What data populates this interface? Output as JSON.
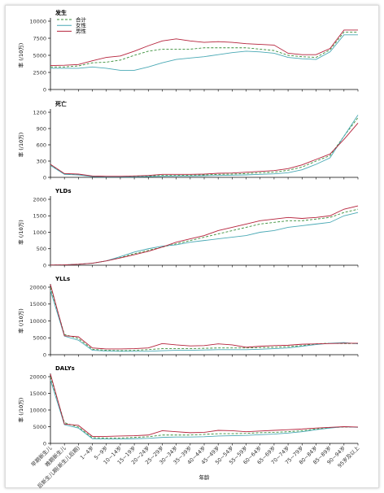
{
  "chart_data": {
    "type": "line",
    "xlabel": "年龄",
    "categories": [
      "早期新生儿",
      "晚期新生儿",
      "后新生儿期(新生儿后期)",
      "1~4岁",
      "5~9岁",
      "10~14岁",
      "15~19岁",
      "20~24岁",
      "25~29岁",
      "30~34岁",
      "35~39岁",
      "40~44岁",
      "45~49岁",
      "50~54岁",
      "55~59岁",
      "60~64岁",
      "65~69岁",
      "70~74岁",
      "75~79岁",
      "80~84岁",
      "85~89岁",
      "90~94岁",
      "95岁及以上"
    ],
    "legend": [
      {
        "name": "合计",
        "color": "#3a8f3a",
        "dash": "3,2"
      },
      {
        "name": "女性",
        "color": "#4aa9b5",
        "dash": ""
      },
      {
        "name": "男性",
        "color": "#b5223b",
        "dash": ""
      }
    ],
    "panels": [
      {
        "title": "发生",
        "ylabel": "率 (/10万)",
        "ylim": [
          0,
          10000
        ],
        "yticks": [
          0,
          2500,
          5000,
          7500,
          10000
        ],
        "series": [
          {
            "name": "合计",
            "values": [
              3300,
              3300,
              3450,
              3900,
              4000,
              4300,
              5000,
              5600,
              5900,
              5900,
              5900,
              6100,
              6100,
              6100,
              6100,
              5900,
              5700,
              5000,
              4800,
              4700,
              5800,
              8400,
              8400
            ]
          },
          {
            "name": "女性",
            "values": [
              3100,
              3100,
              3100,
              3300,
              3100,
              2800,
              2800,
              3300,
              3900,
              4400,
              4600,
              4800,
              5100,
              5400,
              5600,
              5500,
              5300,
              4700,
              4500,
              4400,
              5500,
              8000,
              8000
            ]
          },
          {
            "name": "男性",
            "values": [
              3500,
              3550,
              3650,
              4200,
              4700,
              4900,
              5600,
              6400,
              7100,
              7400,
              7100,
              6900,
              7000,
              6900,
              6700,
              6600,
              6500,
              5300,
              5100,
              5100,
              6000,
              8700,
              8700
            ]
          }
        ]
      },
      {
        "title": "死亡",
        "ylabel": "率 (/10万)",
        "ylim": [
          0,
          1200
        ],
        "yticks": [
          0,
          300,
          600,
          900,
          1200
        ],
        "series": [
          {
            "name": "合计",
            "values": [
              230,
              60,
              50,
              20,
              15,
              15,
              15,
              25,
              35,
              35,
              40,
              45,
              55,
              60,
              70,
              85,
              95,
              130,
              190,
              300,
              400,
              760,
              1100
            ]
          },
          {
            "name": "女性",
            "values": [
              220,
              55,
              45,
              15,
              10,
              10,
              10,
              15,
              20,
              25,
              25,
              30,
              35,
              40,
              45,
              55,
              65,
              85,
              140,
              240,
              360,
              760,
              1150
            ]
          },
          {
            "name": "男性",
            "values": [
              240,
              70,
              60,
              25,
              20,
              20,
              25,
              35,
              55,
              55,
              55,
              60,
              75,
              80,
              95,
              110,
              125,
              160,
              230,
              330,
              430,
              700,
              1000
            ]
          }
        ]
      },
      {
        "title": "YLDs",
        "ylabel": "率 (/10万)",
        "ylim": [
          0,
          2000
        ],
        "yticks": [
          0,
          500,
          1000,
          1500,
          2000
        ],
        "series": [
          {
            "name": "合计",
            "values": [
              5,
              10,
              30,
              60,
              130,
              230,
              350,
              450,
              550,
              650,
              750,
              850,
              950,
              1050,
              1150,
              1250,
              1300,
              1350,
              1350,
              1400,
              1450,
              1600,
              1700
            ]
          },
          {
            "name": "女性",
            "values": [
              5,
              10,
              30,
              60,
              130,
              260,
              400,
              500,
              580,
              620,
              700,
              750,
              800,
              850,
              900,
              1000,
              1050,
              1150,
              1200,
              1250,
              1300,
              1500,
              1600
            ]
          },
          {
            "name": "男性",
            "values": [
              5,
              10,
              30,
              60,
              130,
              220,
              320,
              420,
              550,
              700,
              800,
              900,
              1050,
              1150,
              1250,
              1350,
              1400,
              1450,
              1420,
              1450,
              1500,
              1700,
              1800
            ]
          }
        ]
      },
      {
        "title": "YLLs",
        "ylabel": "率 (/10万)",
        "ylim": [
          0,
          20000
        ],
        "yticks": [
          0,
          5000,
          10000,
          15000,
          20000
        ],
        "series": [
          {
            "name": "合计",
            "values": [
              20000,
              6000,
              4800,
              1600,
              1300,
              1200,
              1300,
              1500,
              1800,
              1800,
              1800,
              1900,
              2000,
              2000,
              2000,
              2100,
              2200,
              2400,
              2700,
              3200,
              3400,
              3300,
              3300
            ]
          },
          {
            "name": "女性",
            "values": [
              19000,
              5500,
              4300,
              1300,
              1100,
              1000,
              1000,
              1000,
              1200,
              1300,
              1300,
              1400,
              1500,
              1500,
              1500,
              1600,
              1800,
              2000,
              2500,
              3000,
              3400,
              3600,
              3200
            ]
          },
          {
            "name": "男性",
            "values": [
              20800,
              5600,
              5300,
              2000,
              1700,
              1700,
              1800,
              2000,
              3300,
              2900,
              2600,
              2700,
              3200,
              2900,
              2200,
              2500,
              2700,
              2800,
              3100,
              3200,
              3300,
              3400,
              3400
            ]
          }
        ]
      },
      {
        "title": "DALYs",
        "ylabel": "率 (/10万)",
        "ylim": [
          0,
          20000
        ],
        "yticks": [
          0,
          5000,
          10000,
          15000,
          20000
        ],
        "series": [
          {
            "name": "合计",
            "values": [
              20000,
              6200,
              4900,
              1700,
              1600,
              1600,
              1800,
              2000,
              2500,
              2500,
              2500,
              2700,
              2900,
              2900,
              3000,
              3200,
              3300,
              3500,
              3800,
              4300,
              4700,
              4900,
              4900
            ]
          },
          {
            "name": "女性",
            "values": [
              19000,
              5600,
              4600,
              1400,
              1300,
              1300,
              1400,
              1500,
              1800,
              1900,
              1900,
              2000,
              2200,
              2300,
              2400,
              2600,
              2800,
              3100,
              3500,
              4100,
              4600,
              5000,
              4800
            ]
          },
          {
            "name": "男性",
            "values": [
              20800,
              5800,
              5400,
              2100,
              2100,
              2200,
              2300,
              2500,
              3800,
              3500,
              3200,
              3300,
              3900,
              3800,
              3500,
              3700,
              3900,
              4100,
              4300,
              4600,
              4800,
              5000,
              4900
            ]
          }
        ]
      }
    ]
  }
}
